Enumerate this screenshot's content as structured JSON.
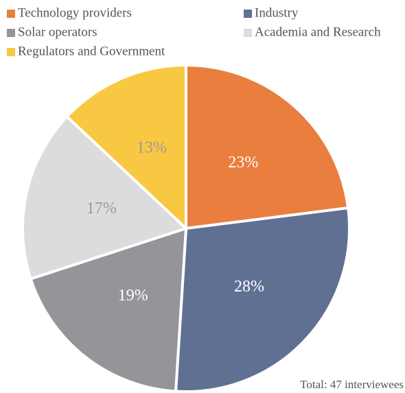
{
  "chart_data": {
    "type": "pie",
    "categories": [
      "Technology providers",
      "Industry",
      "Solar operators",
      "Academia and Research",
      "Regulators and Government"
    ],
    "values": [
      23,
      28,
      19,
      17,
      13
    ],
    "value_labels": [
      "23%",
      "28%",
      "19%",
      "17%",
      "13%"
    ],
    "colors": [
      "#E97E3E",
      "#5F7093",
      "#939598",
      "#DCDCDE",
      "#F9C843"
    ],
    "label_colors": [
      "#ffffff",
      "#ffffff",
      "#ffffff",
      "#9a9a9a",
      "#9a9a9a"
    ],
    "note": "Total: 47 interviewees",
    "legend": "top"
  }
}
